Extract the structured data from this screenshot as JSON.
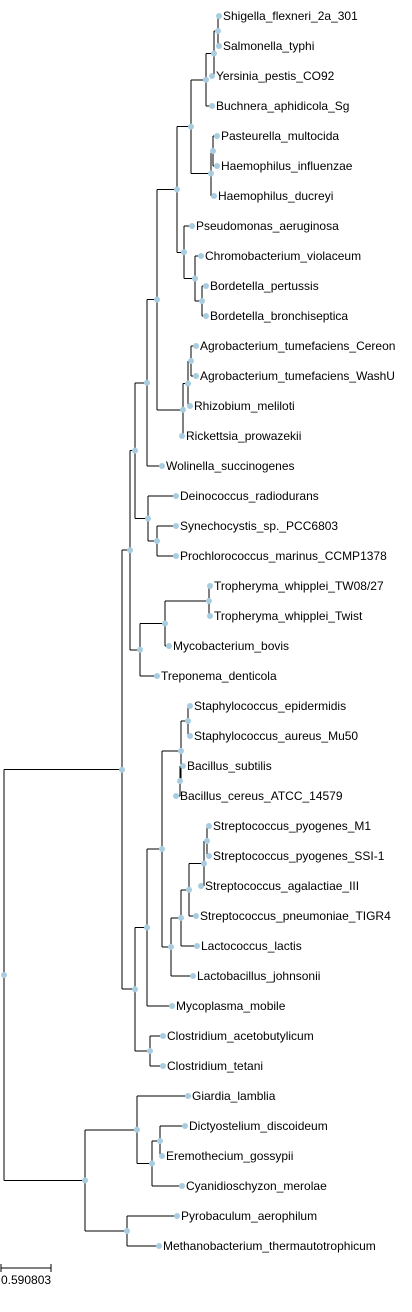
{
  "tree": {
    "type": "phylogenetic-tree",
    "leaves": [
      "Shigella_flexneri_2a_301",
      "Salmonella_typhi",
      "Yersinia_pestis_CO92",
      "Buchnera_aphidicola_Sg",
      "Pasteurella_multocida",
      "Haemophilus_influenzae",
      "Haemophilus_ducreyi",
      "Pseudomonas_aeruginosa",
      "Chromobacterium_violaceum",
      "Bordetella_pertussis",
      "Bordetella_bronchiseptica",
      "Agrobacterium_tumefaciens_Cereon",
      "Agrobacterium_tumefaciens_WashU",
      "Rhizobium_meliloti",
      "Rickettsia_prowazekii",
      "Wolinella_succinogenes",
      "Deinococcus_radiodurans",
      "Synechocystis_sp._PCC6803",
      "Prochlorococcus_marinus_CCMP1378",
      "Tropheryma_whipplei_TW08/27",
      "Tropheryma_whipplei_Twist",
      "Mycobacterium_bovis",
      "Treponema_denticola",
      "Staphylococcus_epidermidis",
      "Staphylococcus_aureus_Mu50",
      "Bacillus_subtilis",
      "Bacillus_cereus_ATCC_14579",
      "Streptococcus_pyogenes_M1",
      "Streptococcus_pyogenes_SSI-1",
      "Streptococcus_agalactiae_III",
      "Streptococcus_pneumoniae_TIGR4",
      "Lactococcus_lactis",
      "Lactobacillus_johnsonii",
      "Mycoplasma_mobile",
      "Clostridium_acetobutylicum",
      "Clostridium_tetani",
      "Giardia_lamblia",
      "Dictyostelium_discoideum",
      "Eremothecium_gossypii",
      "Cyanidioschyzon_merolae",
      "Pyrobaculum_aerophilum",
      "Methanobacterium_thermautotrophicum"
    ],
    "scale_bar_label": "0.590803",
    "colors": {
      "branch": "#000000",
      "node": "#a9cde0"
    }
  }
}
